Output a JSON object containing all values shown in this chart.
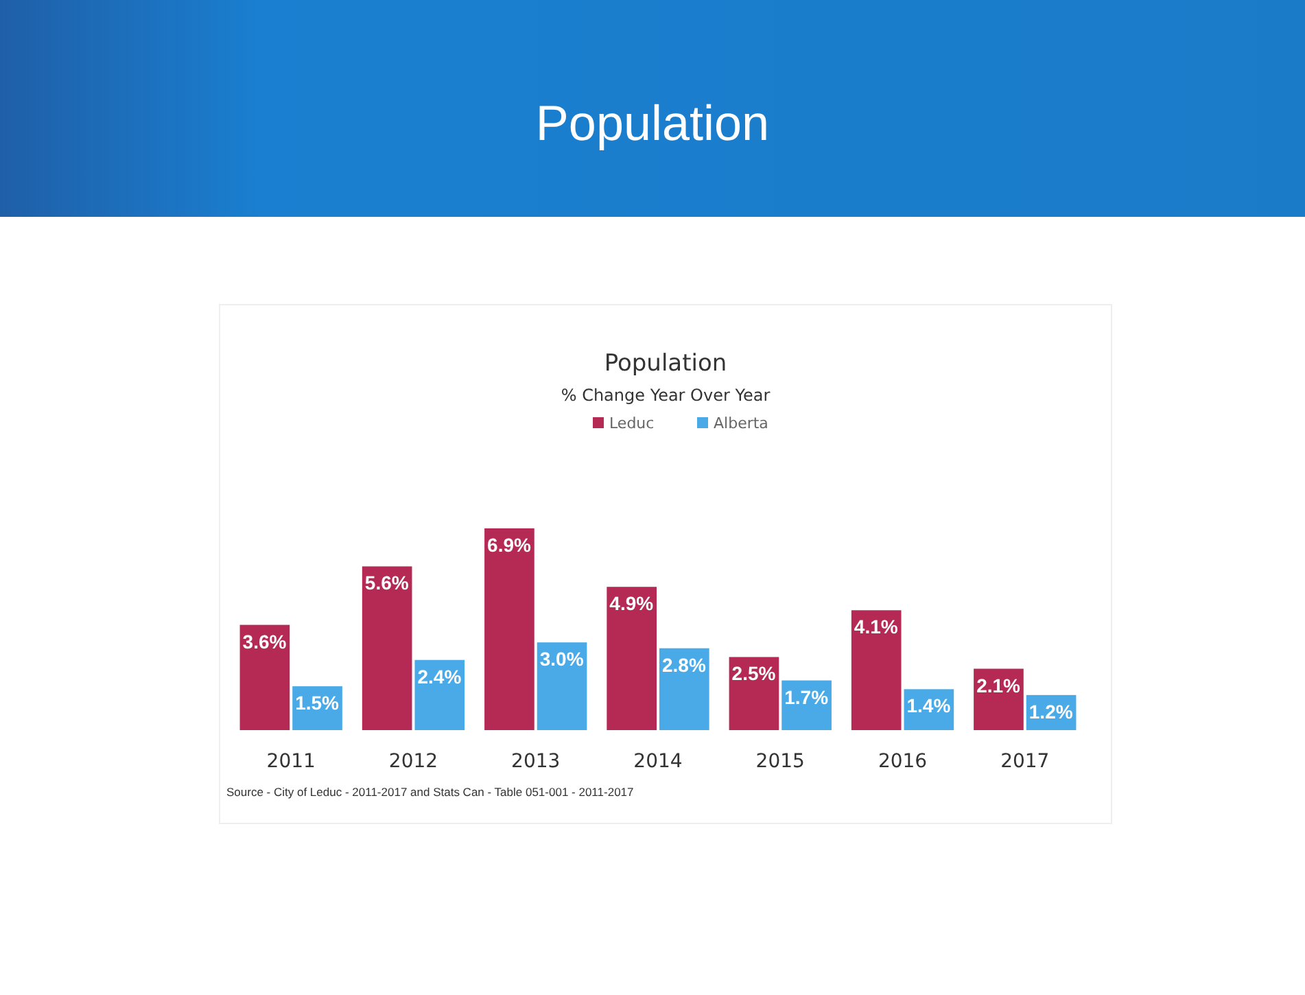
{
  "chart_data": {
    "type": "bar",
    "title": "Population",
    "subtitle": "Population",
    "categories": [
      "2011",
      "2012",
      "2013",
      "2014",
      "2015",
      "2016",
      "2017"
    ],
    "series": [
      {
        "name": "Leduc",
        "color": "#b52a55",
        "values": [
          3.6,
          5.6,
          6.9,
          4.9,
          2.5,
          4.1,
          2.1
        ],
        "value_labels": [
          "3.6%",
          "5.6%",
          "6.9%",
          "4.9%",
          "2.5%",
          "4.1%",
          "2.1%"
        ]
      },
      {
        "name": "Alberta",
        "color": "#4aaae8",
        "values": [
          1.5,
          2.4,
          3.0,
          2.8,
          1.7,
          1.4,
          1.2
        ],
        "value_labels": [
          "1.5%",
          "2.4%",
          "3.0%",
          "2.8%",
          "1.7%",
          "1.4%",
          "1.2%"
        ]
      }
    ],
    "annotations": [
      "% Change Year Over Year",
      "Source - City of Leduc - 2011-2017 and Stats Can - Table 051-001 - 2011-2017"
    ],
    "legend": "top"
  }
}
